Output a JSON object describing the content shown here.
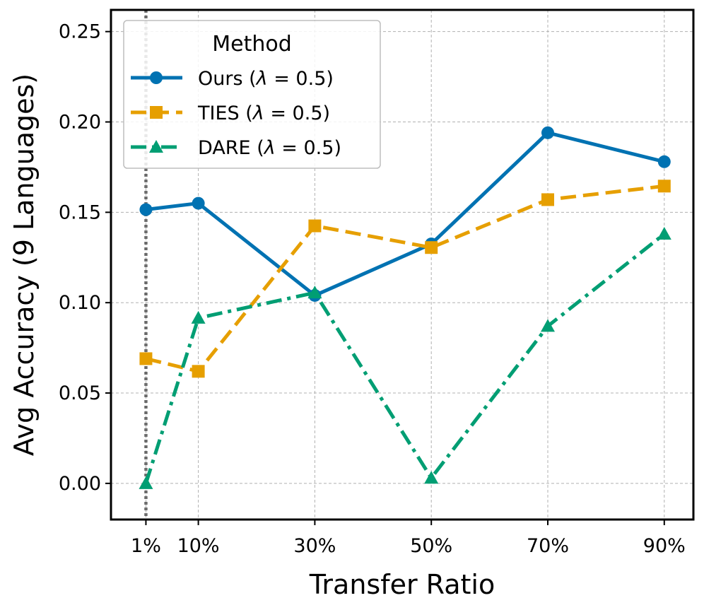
{
  "chart_data": {
    "type": "line",
    "title": "",
    "xlabel": "Transfer Ratio",
    "ylabel": "Avg Accuracy (9 Languages)",
    "x": [
      1,
      10,
      30,
      50,
      70,
      90
    ],
    "x_tick_labels": [
      "1%",
      "10%",
      "30%",
      "50%",
      "70%",
      "90%"
    ],
    "y_ticks": [
      0.0,
      0.05,
      0.1,
      0.15,
      0.2,
      0.25
    ],
    "y_tick_labels": [
      "0.00",
      "0.05",
      "0.10",
      "0.15",
      "0.20",
      "0.25"
    ],
    "xlim": [
      -5,
      95
    ],
    "ylim": [
      -0.02,
      0.262
    ],
    "grid": true,
    "reference_line_x": 1,
    "legend": {
      "title": "Method",
      "placement": "top-left"
    },
    "series": [
      {
        "name": "Ours",
        "label_prefix": "Ours (",
        "lambda_symbol": "λ",
        "label_value": " = 0.5)",
        "values": [
          0.1515,
          0.155,
          0.104,
          0.1325,
          0.194,
          0.178
        ],
        "color": "#0072B2",
        "marker": "circle",
        "dash": "solid"
      },
      {
        "name": "TIES",
        "label_prefix": "TIES (",
        "lambda_symbol": "λ",
        "label_value": " = 0.5)",
        "values": [
          0.069,
          0.062,
          0.1425,
          0.1305,
          0.157,
          0.1645
        ],
        "color": "#E69F00",
        "marker": "square",
        "dash": "dashed"
      },
      {
        "name": "DARE",
        "label_prefix": "DARE (",
        "lambda_symbol": "λ",
        "label_value": " = 0.5)",
        "values": [
          0.0,
          0.0915,
          0.1055,
          0.003,
          0.087,
          0.138
        ],
        "color": "#009E73",
        "marker": "triangle",
        "dash": "dashdot"
      }
    ]
  }
}
